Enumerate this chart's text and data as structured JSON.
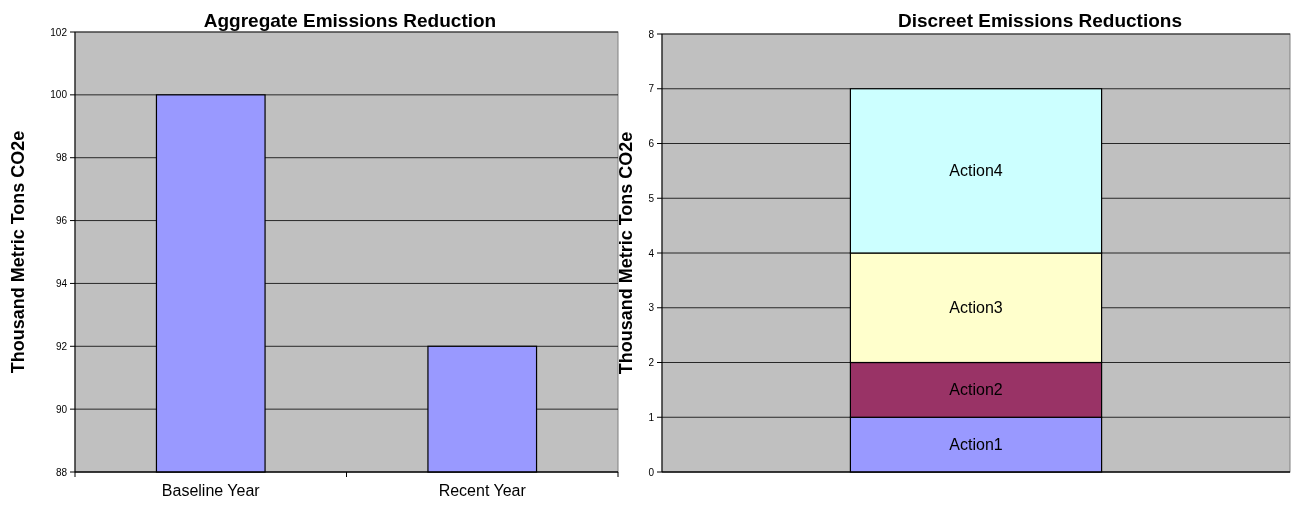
{
  "chart_data": [
    {
      "type": "bar",
      "title": "Aggregate Emissions Reduction",
      "ylabel": "Thousand Metric Tons CO2e",
      "categories": [
        "Baseline Year",
        "Recent Year"
      ],
      "values": [
        100,
        92
      ],
      "color": "#9999ff",
      "ylim": [
        88,
        102
      ],
      "yticks": [
        88,
        90,
        92,
        94,
        96,
        98,
        100,
        102
      ],
      "grid": "y"
    },
    {
      "type": "bar",
      "title": "Discreet Emissions Reductions",
      "ylabel": "Thousand Metric Tons CO2e",
      "categories": [
        null
      ],
      "stacked": true,
      "series": [
        {
          "name": "Action1",
          "color": "#9999ff",
          "values": [
            1
          ]
        },
        {
          "name": "Action2",
          "color": "#993366",
          "values": [
            1
          ]
        },
        {
          "name": "Action3",
          "color": "#ffffcc",
          "values": [
            2
          ]
        },
        {
          "name": "Action4",
          "color": "#ccffff",
          "values": [
            3
          ]
        }
      ],
      "ylim": [
        0,
        8
      ],
      "yticks": [
        0,
        1,
        2,
        3,
        4,
        5,
        6,
        7,
        8
      ],
      "grid": "y"
    }
  ]
}
